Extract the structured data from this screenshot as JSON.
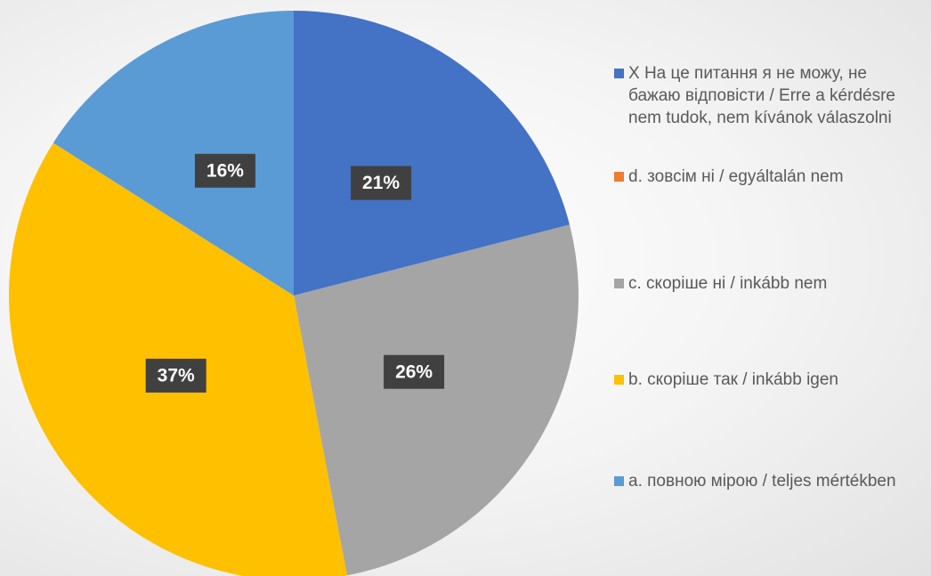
{
  "chart_data": {
    "type": "pie",
    "categories": [
      "X На це питання я не можу, не бажаю відповісти / Erre a kérdésre nem tudok, nem kívánok válaszolni",
      "d. зовсім ні / egyáltalán nem",
      "c. скоріше ні / inkább nem",
      "b. скоріше так / inkább igen",
      "a. повною мірою / teljes mértékben"
    ],
    "values": [
      21,
      0,
      26,
      37,
      16
    ],
    "value_labels": [
      "21%",
      null,
      "26%",
      "37%",
      "16%"
    ],
    "colors": [
      "#4472c4",
      "#ed7d31",
      "#a5a5a5",
      "#ffc000",
      "#5b9bd5"
    ],
    "legend": "right"
  }
}
